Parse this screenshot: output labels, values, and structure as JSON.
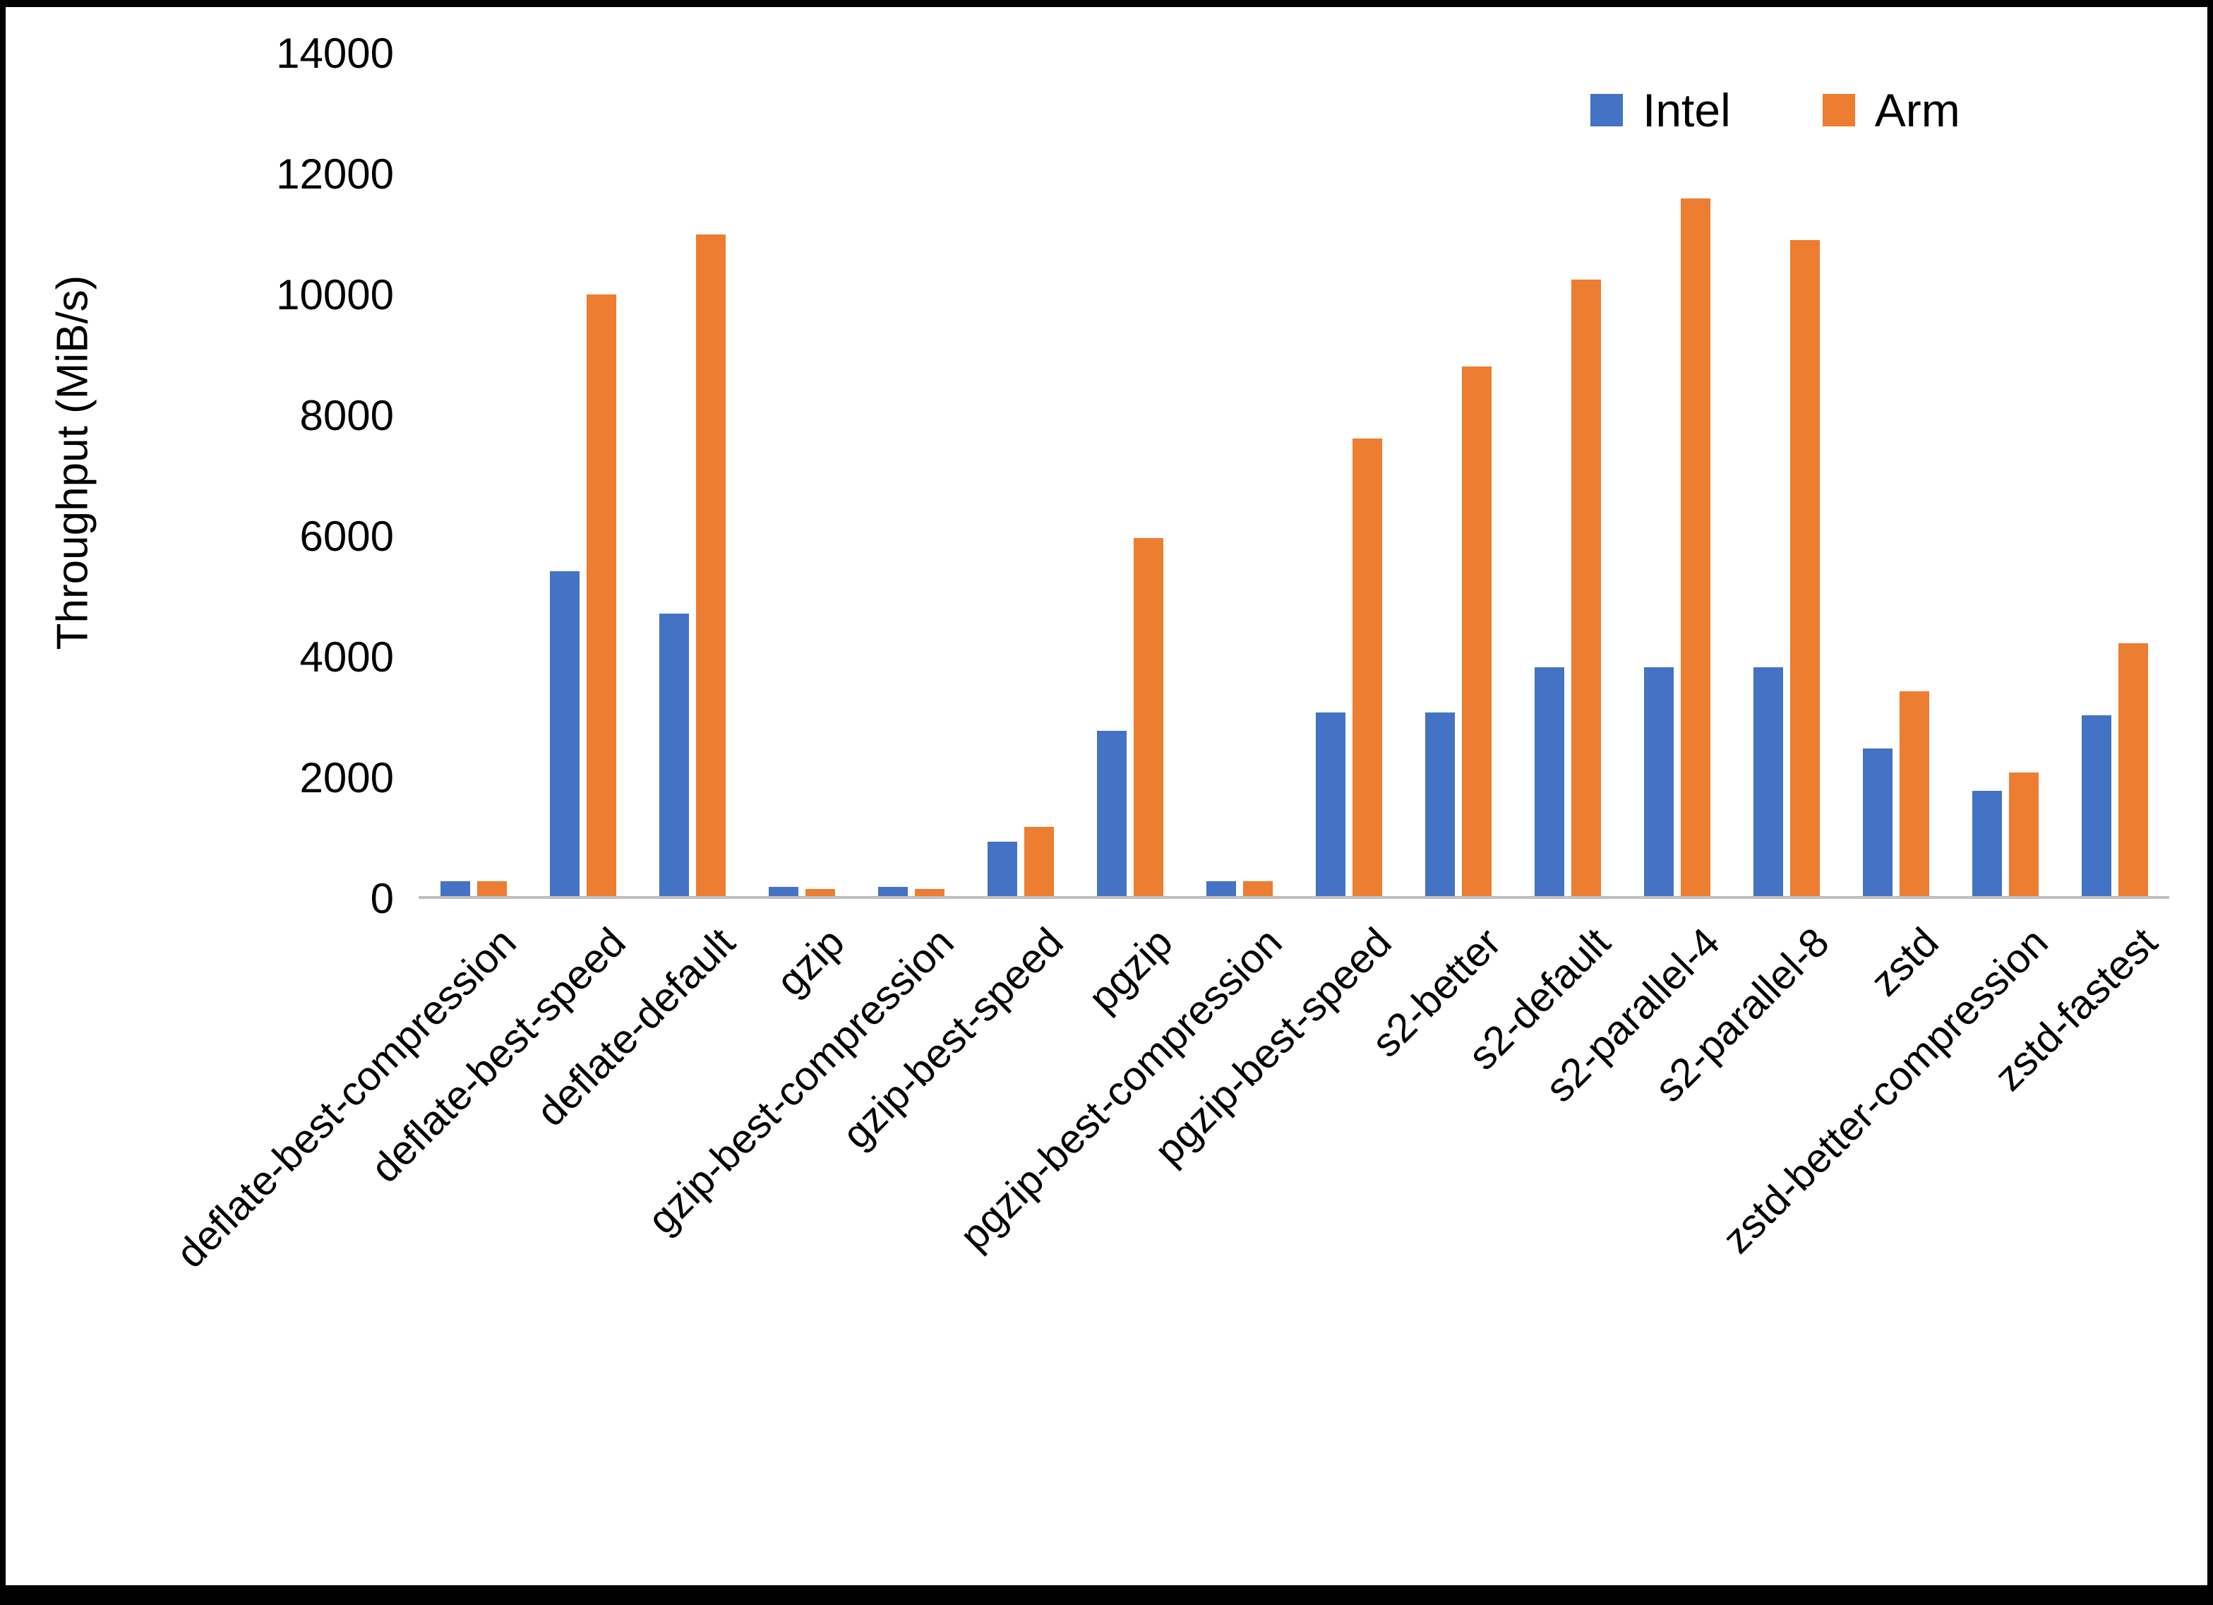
{
  "chart_data": {
    "type": "bar",
    "title": "",
    "xlabel": "",
    "ylabel": "Throughput (MiB/s)",
    "ylim": [
      0,
      14000
    ],
    "yticks": [
      0,
      2000,
      4000,
      6000,
      8000,
      10000,
      12000,
      14000
    ],
    "grid": false,
    "legend_position": "top-right",
    "categories": [
      "deflate-best-compression",
      "deflate-best-speed",
      "deflate-default",
      "gzip",
      "gzip-best-compression",
      "gzip-best-speed",
      "pgzip",
      "pgzip-best-compression",
      "pgzip-best-speed",
      "s2-better",
      "s2-default",
      "s2-parallel-4",
      "s2-parallel-8",
      "zstd",
      "zstd-better-compression",
      "zstd-fastest"
    ],
    "series": [
      {
        "name": "Intel",
        "color": "#4472C4",
        "values": [
          250,
          5400,
          4700,
          150,
          150,
          900,
          2750,
          250,
          3050,
          3050,
          3800,
          3800,
          3800,
          2450,
          1750,
          3000
        ]
      },
      {
        "name": "Arm",
        "color": "#ED7D31",
        "values": [
          250,
          10000,
          11000,
          120,
          120,
          1150,
          5950,
          250,
          7600,
          8800,
          10250,
          11600,
          10900,
          3400,
          2050,
          4200
        ]
      }
    ]
  }
}
